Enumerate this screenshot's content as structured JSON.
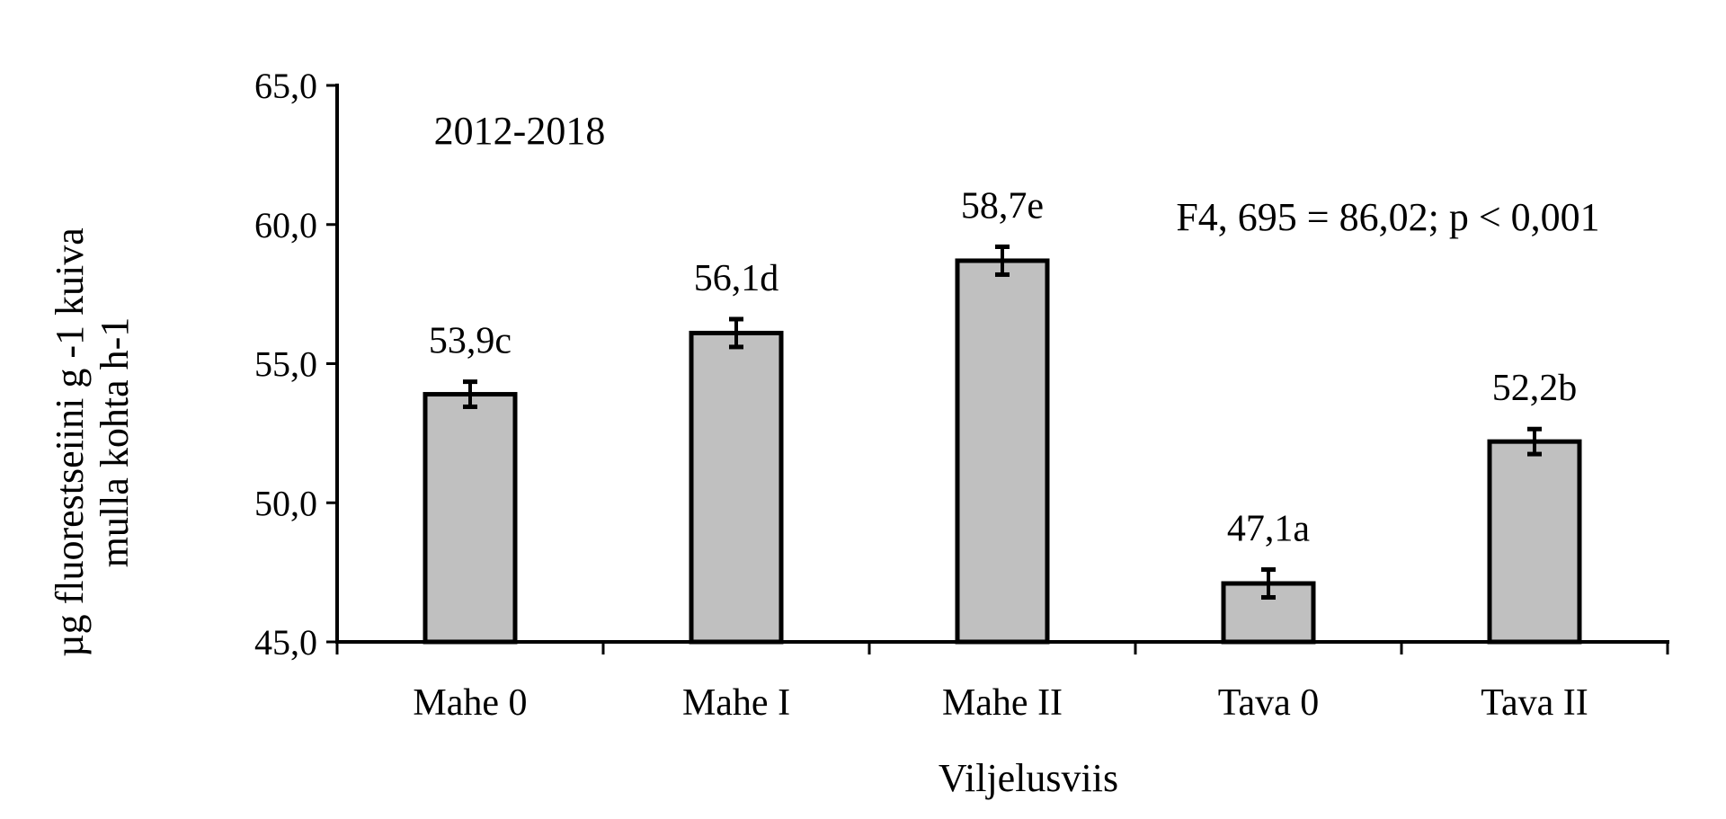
{
  "chart_data": {
    "type": "bar",
    "categories": [
      "Mahe 0",
      "Mahe I",
      "Mahe II",
      "Tava 0",
      "Tava II"
    ],
    "values": [
      53.9,
      56.1,
      58.7,
      47.1,
      52.2
    ],
    "errors": [
      0.45,
      0.5,
      0.5,
      0.5,
      0.45
    ],
    "data_labels": [
      "53,9c",
      "56,1d",
      "58,7e",
      "47,1a",
      "52,2b"
    ],
    "xlabel": "Viljelusviis",
    "ylabel_line1": "µg fluorestseiini g -1 kuiva",
    "ylabel_line2": "mulla kohta h-1",
    "ylim": [
      45,
      65
    ],
    "yticks": [
      45,
      50,
      55,
      60,
      65
    ],
    "ytick_labels": [
      "45,0",
      "50,0",
      "55,0",
      "60,0",
      "65,0"
    ],
    "annotations": [
      "2012-2018",
      "F4, 695 = 86,02; p < 0,001"
    ],
    "grid": false,
    "legend": "none",
    "colors": {
      "bar_fill": "#c0c0c0",
      "bar_stroke": "#000000"
    }
  }
}
